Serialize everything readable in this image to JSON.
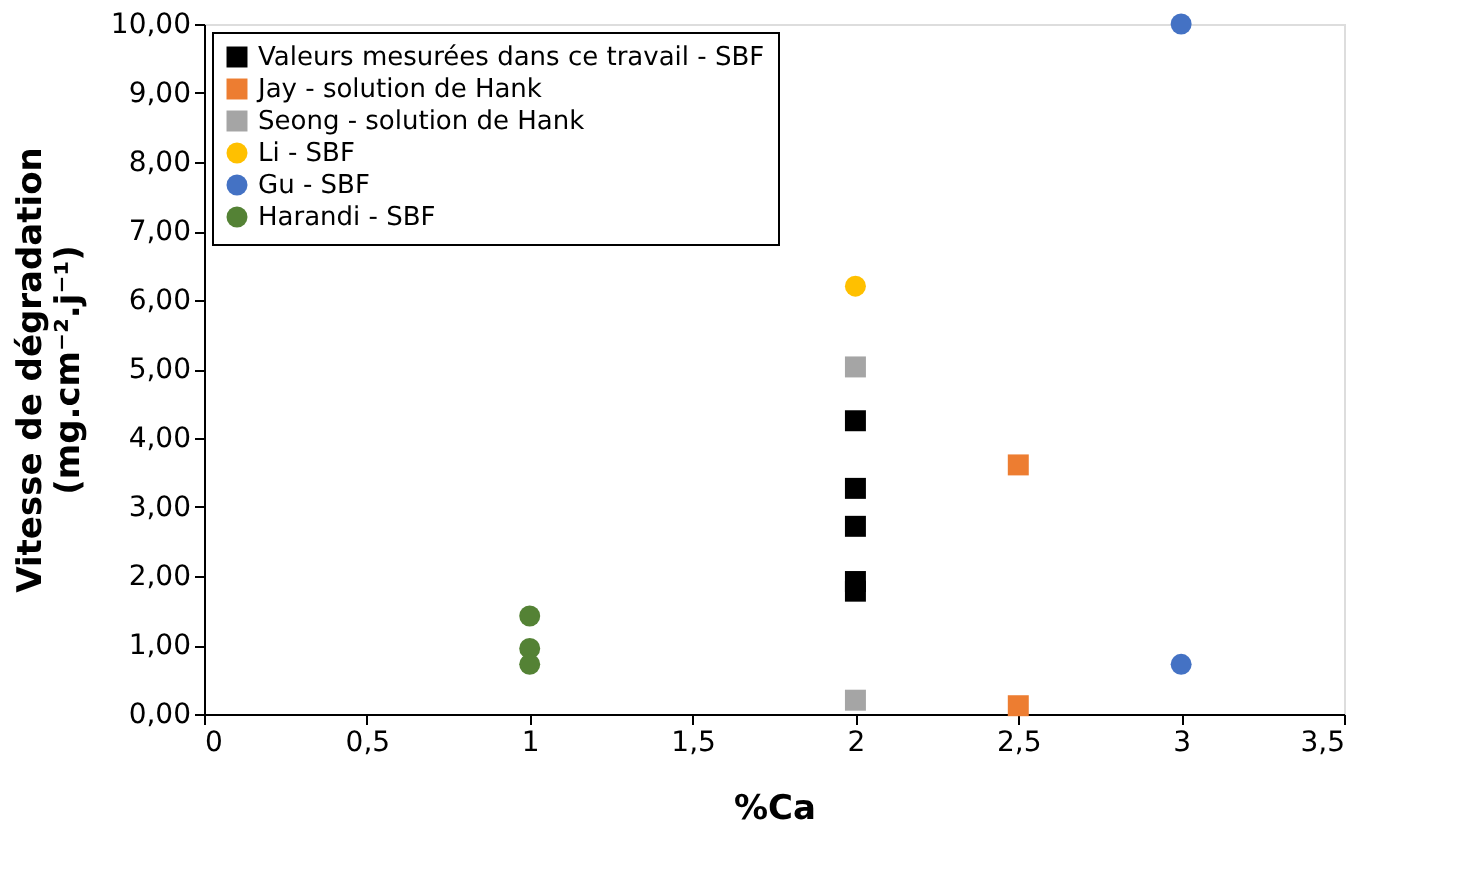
{
  "chart_data": {
    "type": "scatter",
    "xlabel": "%Ca",
    "ylabel": "Vitesse de dégradation\n(mg.cm⁻².j⁻¹)",
    "xlim": [
      0,
      3.5
    ],
    "xticks": [
      0,
      {
        "value": 0.5,
        "label": "0,5"
      },
      1,
      {
        "value": 1.5,
        "label": "1,5"
      },
      2,
      {
        "value": 2.5,
        "label": "2,5"
      },
      3,
      {
        "value": 3.5,
        "label": "3,5"
      }
    ],
    "ylim": [
      0,
      10
    ],
    "yticks": [
      {
        "value": 0,
        "label": "0,00"
      },
      {
        "value": 1,
        "label": "1,00"
      },
      {
        "value": 2,
        "label": "2,00"
      },
      {
        "value": 3,
        "label": "3,00"
      },
      {
        "value": 4,
        "label": "4,00"
      },
      {
        "value": 5,
        "label": "5,00"
      },
      {
        "value": 6,
        "label": "6,00"
      },
      {
        "value": 7,
        "label": "7,00"
      },
      {
        "value": 8,
        "label": "8,00"
      },
      {
        "value": 9,
        "label": "9,00"
      },
      {
        "value": 10,
        "label": "10,00"
      }
    ],
    "grid": false,
    "legend": "top left",
    "series": [
      {
        "name": "Valeurs mesurées dans ce travail - SBF",
        "color": "#000000",
        "marker": "square",
        "x": [
          2,
          2,
          2,
          2,
          2
        ],
        "values": [
          4.25,
          3.27,
          2.72,
          1.92,
          1.78
        ]
      },
      {
        "name": "Jay - solution de Hank",
        "color": "#ed7d31",
        "marker": "square",
        "x": [
          2.5,
          2.5
        ],
        "values": [
          3.61,
          0.12
        ]
      },
      {
        "name": "Seong - solution de Hank",
        "color": "#a5a5a5",
        "marker": "square",
        "x": [
          2,
          2
        ],
        "values": [
          5.03,
          0.2
        ]
      },
      {
        "name": "Li - SBF",
        "color": "#ffc000",
        "marker": "circle",
        "x": [
          2
        ],
        "values": [
          6.2
        ]
      },
      {
        "name": "Gu - SBF",
        "color": "#4472c4",
        "marker": "circle",
        "x": [
          3,
          3
        ],
        "values": [
          10.0,
          0.72
        ]
      },
      {
        "name": "Harandi - SBF",
        "color": "#548235",
        "marker": "circle",
        "x": [
          1,
          1,
          1
        ],
        "values": [
          1.42,
          0.95,
          0.72
        ]
      }
    ]
  }
}
